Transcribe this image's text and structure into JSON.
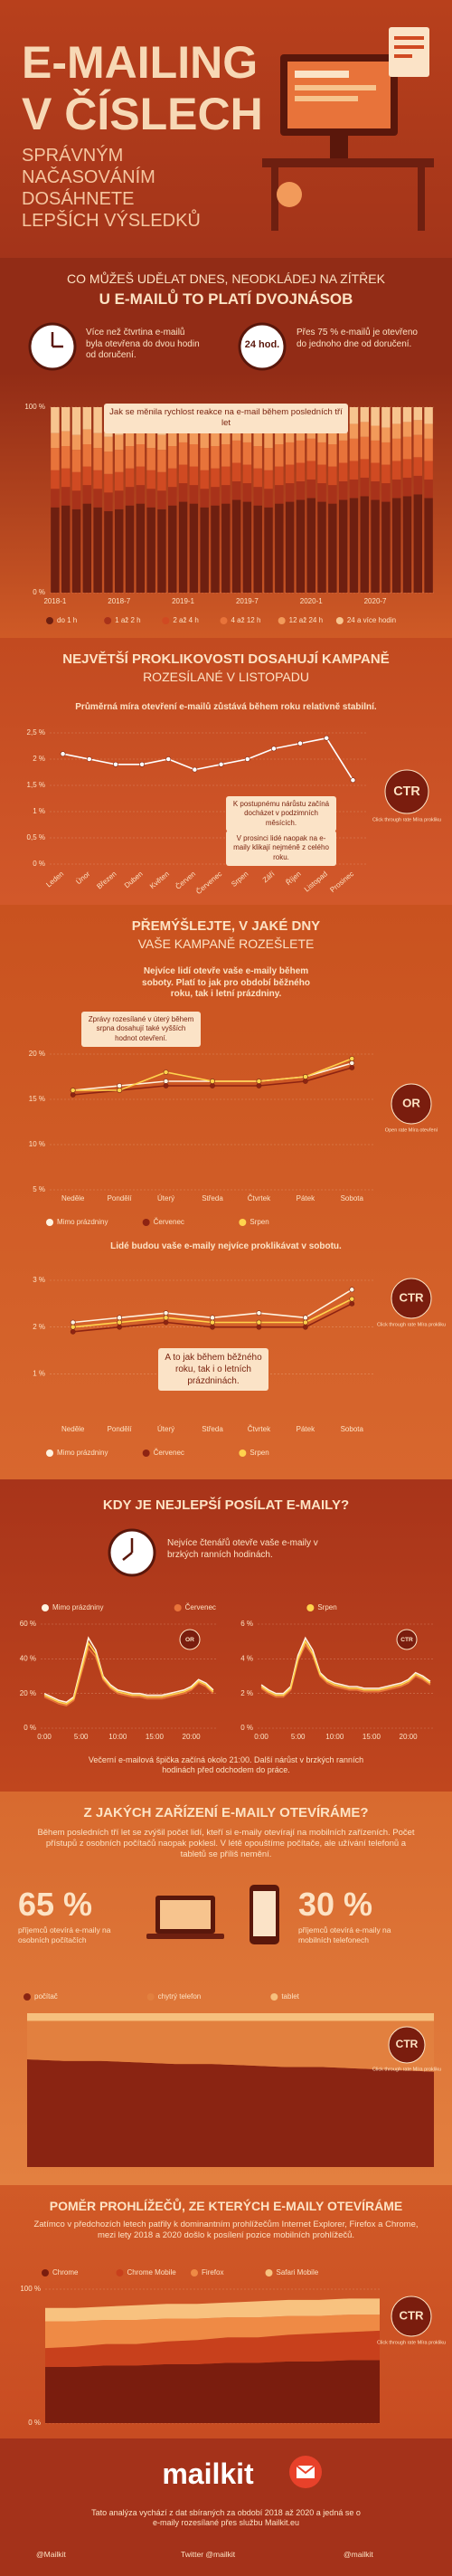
{
  "header": {
    "title_lines": [
      "E-MAILING",
      "V ČÍSLECH"
    ],
    "subtitle_lines": [
      "SPRÁVNÝM",
      "NAČASOVÁNÍM",
      "DOSÁHNETE",
      "LEPŠÍCH VÝSLEDKŮ"
    ]
  },
  "response": {
    "heading": "CO MŮŽEŠ UDĚLAT DNES, NEODKLÁDEJ NA ZÍTŘEK",
    "subheading": "U E-MAILŮ TO PLATÍ DVOJNÁSOB",
    "fact_2h": "Více než čtvrtina e-mailů byla otevřena do dvou hodin od doručení.",
    "clock_label": "24 hod.",
    "fact_24h": "Přes 75 % e-mailů je otevřeno do jednoho dne od doručení.",
    "chart_caption": "Jak se měnila rychlost reakce na e-mail během posledních tří let"
  },
  "months": {
    "heading": "NEJVĚTŠÍ PROKLIKOVOSTI DOSAHUJÍ KAMPANĚ",
    "subheading": "ROZESÍLANÉ V LISTOPADU",
    "lead": "Průměrná míra otevření e-mailů zůstává během roku relativně stabilní.",
    "note_autumn": "K postupnému nárůstu začíná docházet v podzimních měsících.",
    "note_december": "V prosinci lidé naopak na e-maily klikají nejméně z celého roku."
  },
  "days": {
    "heading": "PŘEMÝŠLEJTE, V JAKÉ DNY",
    "subheading": "VAŠE KAMPANĚ ROZEŠLETE",
    "lead_or": "Nejvíce lidí otevře vaše e-maily během soboty. Platí to jak pro období běžného roku, tak i letní prázdniny.",
    "note_tuesday": "Zprávy rozesílané v úterý během srpna dosahují také vyšších hodnot otevření.",
    "lead_ctr": "Lidé budou vaše e-maily nejvíce proklikávat v sobotu.",
    "note_summer": "A to jak během běžného roku, tak i o letních prázdninách."
  },
  "hours": {
    "heading": "KDY JE NEJLEPŠÍ POSÍLAT E-MAILY?",
    "lead": "Nejvíce čtenářů otevře vaše e-maily v brzkých ranních hodinách.",
    "footnote": "Večerní e-mailová špička začíná okolo 21:00. Další nárůst v brzkých ranních hodinách před odchodem do práce."
  },
  "devices": {
    "heading": "Z JAKÝCH ZAŘÍZENÍ E-MAILY OTEVÍRÁME?",
    "text": "Během posledních tří let se zvýšil počet lidí, kteří si e-maily otevírají na mobilních zařízeních. Počet přístupů z osobních počítačů naopak poklesl. V létě opouštíme počítače, ale užívání telefonů a tabletů se příliš nemění.",
    "desktop_share": "65 %",
    "desktop_text": "příjemců otevírá e-maily na osobních počítačích",
    "mobile_share": "30 %",
    "mobile_text": "příjemců otevírá e-maily na mobilních telefonech"
  },
  "browsers": {
    "heading": "POMĚR PROHLÍŽEČŮ, ZE KTERÝCH E-MAILY OTEVÍRÁME",
    "text": "Zatímco v předchozích letech patřily k dominantním prohlížečům Internet Explorer, Firefox a Chrome, mezi lety 2018 a 2020 došlo k posílení pozice mobilních prohlížečů."
  },
  "footer": {
    "logo": "mailkit",
    "note": "Tato analýza vychází z dat sbíraných za období 2018 až 2020 a jedná se o e-maily rozesílané přes službu Mailkit.eu",
    "socials": [
      "@Mailkit",
      "Twitter @mailkit",
      "@mailkit"
    ]
  },
  "chart_data": [
    {
      "type": "stacked_bar",
      "categories": [
        "2018-1",
        null,
        null,
        null,
        null,
        null,
        "2018-7",
        null,
        null,
        null,
        null,
        null,
        "2019-1",
        null,
        null,
        null,
        null,
        null,
        "2019-7",
        null,
        null,
        null,
        null,
        null,
        "2020-1",
        null,
        null,
        null,
        null,
        null,
        "2020-7",
        null,
        null,
        null,
        null,
        null
      ],
      "ylim": [
        0,
        100
      ],
      "yticks": [
        {
          "value": 0,
          "label": "0 %"
        },
        {
          "value": 100,
          "label": "100 %"
        }
      ],
      "series": [
        {
          "name": "do 1 h",
          "color": "#6e1f10",
          "values": [
            46,
            47,
            45,
            48,
            46,
            44,
            45,
            47,
            48,
            46,
            45,
            47,
            49,
            48,
            46,
            47,
            48,
            50,
            49,
            47,
            46,
            48,
            49,
            50,
            51,
            49,
            48,
            50,
            51,
            52,
            50,
            49,
            51,
            52,
            53,
            51
          ]
        },
        {
          "name": "1 až 2 h",
          "color": "#a8321a",
          "values": [
            10,
            10,
            10,
            10,
            10,
            10,
            10,
            10,
            10,
            10,
            10,
            10,
            10,
            10,
            10,
            10,
            10,
            10,
            10,
            10,
            10,
            10,
            10,
            10,
            10,
            10,
            10,
            10,
            10,
            10,
            10,
            10,
            10,
            10,
            10,
            10
          ]
        },
        {
          "name": "2 až 4 h",
          "color": "#d04a22",
          "values": [
            10,
            10,
            10,
            10,
            10,
            10,
            10,
            10,
            10,
            10,
            10,
            10,
            10,
            10,
            10,
            10,
            10,
            10,
            10,
            10,
            10,
            10,
            10,
            10,
            10,
            10,
            10,
            10,
            10,
            10,
            10,
            10,
            10,
            10,
            10,
            10
          ]
        },
        {
          "name": "4 až 12 h",
          "color": "#e8733a",
          "values": [
            12,
            12,
            12,
            12,
            12,
            12,
            12,
            12,
            12,
            12,
            12,
            12,
            12,
            12,
            12,
            12,
            12,
            12,
            12,
            12,
            12,
            12,
            12,
            12,
            12,
            12,
            12,
            12,
            12,
            12,
            12,
            12,
            12,
            12,
            12,
            12
          ]
        },
        {
          "name": "12 až 24 h",
          "color": "#f29a5a",
          "values": [
            8,
            8,
            8,
            8,
            8,
            8,
            8,
            8,
            8,
            8,
            8,
            8,
            8,
            8,
            8,
            8,
            8,
            8,
            8,
            8,
            8,
            8,
            8,
            8,
            8,
            8,
            8,
            8,
            8,
            8,
            8,
            8,
            8,
            8,
            8,
            8
          ]
        },
        {
          "name": "24 a více hodin",
          "color": "#f7c48e",
          "values": [
            14,
            13,
            15,
            12,
            14,
            16,
            15,
            13,
            12,
            14,
            15,
            13,
            11,
            12,
            14,
            13,
            12,
            10,
            11,
            13,
            14,
            12,
            11,
            10,
            9,
            11,
            12,
            10,
            9,
            8,
            10,
            11,
            9,
            8,
            7,
            9
          ]
        }
      ]
    },
    {
      "type": "line",
      "categories": [
        "Leden",
        "Únor",
        "Březen",
        "Duben",
        "Květen",
        "Červen",
        "Červenec",
        "Srpen",
        "Září",
        "Říjen",
        "Listopad",
        "Prosinec"
      ],
      "values": [
        2.1,
        2.0,
        1.9,
        1.9,
        2.0,
        1.8,
        1.9,
        2.0,
        2.2,
        2.3,
        2.4,
        1.6
      ],
      "color": "#ffffff",
      "markers": true,
      "ylim": [
        0,
        2.5
      ],
      "yticks": [
        {
          "value": 0,
          "label": "0 %"
        },
        {
          "value": 0.5,
          "label": "0,5 %"
        },
        {
          "value": 1,
          "label": "1 %"
        },
        {
          "value": 1.5,
          "label": "1,5 %"
        },
        {
          "value": 2,
          "label": "2 %"
        },
        {
          "value": 2.5,
          "label": "2,5 %"
        }
      ],
      "badge": "CTR",
      "badge_note": "Click through rate Míra prokliku"
    },
    {
      "type": "line",
      "categories": [
        "Neděle",
        "Pondělí",
        "Úterý",
        "Středa",
        "Čtvrtek",
        "Pátek",
        "Sobota"
      ],
      "markers": true,
      "ylim": [
        5,
        20
      ],
      "yticks": [
        {
          "value": 5,
          "label": "5 %"
        },
        {
          "value": 10,
          "label": "10 %"
        },
        {
          "value": 15,
          "label": "15 %"
        },
        {
          "value": 20,
          "label": "20 %"
        }
      ],
      "series": [
        {
          "name": "Mimo prázdniny",
          "color": "#fff3e0",
          "values": [
            16,
            16.5,
            17,
            17,
            17,
            17.5,
            19
          ]
        },
        {
          "name": "Červenec",
          "color": "#8e2412",
          "values": [
            15.5,
            16,
            16.5,
            16.5,
            16.5,
            17,
            18.5
          ]
        },
        {
          "name": "Srpen",
          "color": "#ffd34d",
          "values": [
            16,
            16,
            18,
            17,
            17,
            17.5,
            19.5
          ]
        }
      ],
      "badge": "OR",
      "badge_note": "Open rate Míra otevření"
    },
    {
      "type": "line",
      "categories": [
        "Neděle",
        "Pondělí",
        "Úterý",
        "Středa",
        "Čtvrtek",
        "Pátek",
        "Sobota"
      ],
      "markers": true,
      "ylim": [
        0,
        3
      ],
      "yticks": [
        {
          "value": 1,
          "label": "1 %"
        },
        {
          "value": 2,
          "label": "2 %"
        },
        {
          "value": 3,
          "label": "3 %"
        }
      ],
      "series": [
        {
          "name": "Mimo prázdniny",
          "color": "#fff3e0",
          "values": [
            2.1,
            2.2,
            2.3,
            2.2,
            2.3,
            2.2,
            2.8
          ]
        },
        {
          "name": "Červenec",
          "color": "#8e2412",
          "values": [
            1.9,
            2.0,
            2.1,
            2.0,
            2.0,
            2.0,
            2.5
          ]
        },
        {
          "name": "Srpen",
          "color": "#ffd34d",
          "values": [
            2.0,
            2.1,
            2.2,
            2.1,
            2.1,
            2.1,
            2.6
          ]
        }
      ],
      "badge": "CTR",
      "badge_note": "Click through rate Míra prokliku"
    },
    {
      "type": "line",
      "categories": [
        "0:00",
        null,
        null,
        null,
        null,
        "5:00",
        null,
        null,
        null,
        null,
        "10:00",
        null,
        null,
        null,
        null,
        "15:00",
        null,
        null,
        null,
        null,
        "20:00",
        null,
        null,
        null
      ],
      "ylim": [
        0,
        60
      ],
      "yticks": [
        {
          "value": 0,
          "label": "0 %"
        },
        {
          "value": 20,
          "label": "20 %"
        },
        {
          "value": 40,
          "label": "40 %"
        },
        {
          "value": 60,
          "label": "60 %"
        }
      ],
      "series": [
        {
          "name": "Mimo prázdniny",
          "color": "#fff3e0",
          "values": [
            20,
            18,
            16,
            15,
            18,
            35,
            52,
            45,
            30,
            25,
            22,
            21,
            20,
            20,
            19,
            19,
            19,
            20,
            21,
            22,
            24,
            28,
            26,
            22
          ]
        },
        {
          "name": "Červenec",
          "color": "#e8733a",
          "values": [
            18,
            16,
            14,
            13,
            16,
            31,
            46,
            41,
            28,
            23,
            20,
            19,
            18,
            18,
            17,
            17,
            17,
            18,
            19,
            20,
            22,
            26,
            24,
            20
          ]
        },
        {
          "name": "Srpen",
          "color": "#ffd34d",
          "values": [
            19,
            17,
            15,
            14,
            17,
            33,
            49,
            43,
            29,
            24,
            21,
            20,
            19,
            19,
            18,
            18,
            18,
            19,
            20,
            21,
            23,
            27,
            25,
            21
          ]
        }
      ],
      "badge": "OR"
    },
    {
      "type": "line",
      "categories": [
        "0:00",
        null,
        null,
        null,
        null,
        "5:00",
        null,
        null,
        null,
        null,
        "10:00",
        null,
        null,
        null,
        null,
        "15:00",
        null,
        null,
        null,
        null,
        "20:00",
        null,
        null,
        null
      ],
      "ylim": [
        0,
        6
      ],
      "yticks": [
        {
          "value": 0,
          "label": "0 %"
        },
        {
          "value": 2,
          "label": "2 %"
        },
        {
          "value": 4,
          "label": "4 %"
        },
        {
          "value": 6,
          "label": "6 %"
        }
      ],
      "series": [
        {
          "color": "#fff3e0",
          "values": [
            2.5,
            2.2,
            2.0,
            2.0,
            2.4,
            4.2,
            5.2,
            4.5,
            3.2,
            2.8,
            2.6,
            2.5,
            2.4,
            2.4,
            2.3,
            2.3,
            2.3,
            2.4,
            2.5,
            2.6,
            2.8,
            3.2,
            3.0,
            2.7
          ]
        },
        {
          "color": "#e8733a",
          "values": [
            2.3,
            2.0,
            1.8,
            1.8,
            2.2,
            3.9,
            4.8,
            4.2,
            3.0,
            2.6,
            2.4,
            2.3,
            2.2,
            2.2,
            2.1,
            2.1,
            2.1,
            2.2,
            2.3,
            2.4,
            2.6,
            3.0,
            2.8,
            2.5
          ]
        },
        {
          "color": "#ffd34d",
          "values": [
            2.4,
            2.1,
            1.9,
            1.9,
            2.3,
            4.0,
            5.0,
            4.3,
            3.1,
            2.7,
            2.5,
            2.4,
            2.3,
            2.3,
            2.2,
            2.2,
            2.2,
            2.3,
            2.4,
            2.5,
            2.7,
            3.1,
            2.9,
            2.6
          ]
        }
      ],
      "badge": "CTR"
    },
    {
      "type": "stacked_area",
      "categories": [
        null,
        null,
        null,
        null,
        null,
        null,
        null,
        null,
        null,
        null,
        null,
        null
      ],
      "ylim": [
        0,
        100
      ],
      "series": [
        {
          "name": "počítač",
          "color": "#8a2412",
          "values": [
            70,
            69,
            69,
            68,
            67,
            67,
            66,
            65,
            65,
            64,
            63,
            62
          ]
        },
        {
          "name": "chytrý telefon",
          "color": "#e2803f",
          "values": [
            25,
            26,
            26,
            27,
            28,
            28,
            29,
            30,
            30,
            31,
            32,
            33
          ]
        },
        {
          "name": "tablet",
          "color": "#f6c07e",
          "values": [
            5,
            5,
            5,
            5,
            5,
            5,
            5,
            5,
            5,
            5,
            5,
            5
          ]
        }
      ],
      "badge": "CTR",
      "badge_note": "Click through rate Míra prokliku"
    },
    {
      "type": "stacked_area",
      "categories": [
        null,
        null,
        null,
        null,
        null,
        null,
        null,
        null,
        null,
        null,
        null,
        null
      ],
      "ylim": [
        0,
        100
      ],
      "yticks": [
        {
          "value": 0,
          "label": "0 %"
        },
        {
          "value": 100,
          "label": "100 %"
        }
      ],
      "series": [
        {
          "name": "Chrome",
          "color": "#7a1d0e",
          "values": [
            42,
            42,
            43,
            43,
            44,
            44,
            45,
            45,
            46,
            46,
            47,
            47
          ]
        },
        {
          "name": "Chrome Mobile",
          "color": "#c8401c",
          "values": [
            14,
            15,
            16,
            16,
            17,
            18,
            19,
            19,
            20,
            21,
            21,
            22
          ]
        },
        {
          "name": "Firefox",
          "color": "#ef8a45",
          "values": [
            20,
            19,
            18,
            18,
            17,
            16,
            15,
            15,
            14,
            13,
            13,
            12
          ]
        },
        {
          "name": "Safari Mobile",
          "color": "#f8c27f",
          "values": [
            10,
            10,
            10,
            11,
            11,
            11,
            11,
            12,
            12,
            12,
            12,
            12
          ]
        }
      ],
      "badge": "CTR",
      "badge_note": "Click through rate Míra prokliku"
    }
  ]
}
